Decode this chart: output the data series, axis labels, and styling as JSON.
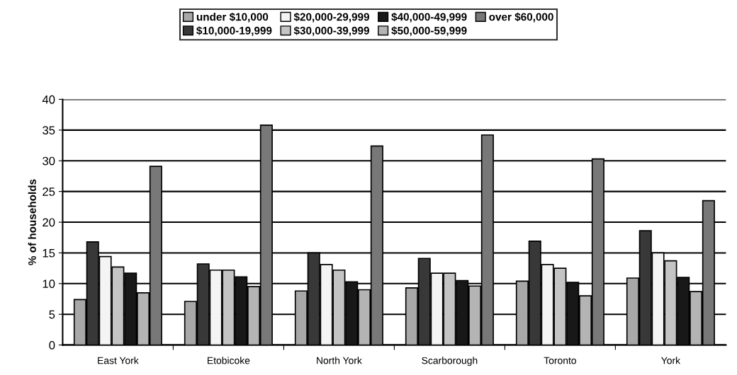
{
  "chart_data": {
    "type": "bar",
    "ylabel": "% of households",
    "categories": [
      "East York",
      "Etobicoke",
      "North York",
      "Scarborough",
      "Toronto",
      "York"
    ],
    "series": [
      {
        "name": "under $10,000",
        "color": "#a8a8a8",
        "values": [
          7.4,
          7.1,
          8.8,
          9.3,
          10.4,
          10.9
        ]
      },
      {
        "name": "$10,000-19,999",
        "color": "#383838",
        "values": [
          16.8,
          13.2,
          15.0,
          14.1,
          16.9,
          18.6
        ]
      },
      {
        "name": "$20,000-29,999",
        "color": "#f4f4f4",
        "values": [
          14.4,
          12.2,
          13.1,
          11.7,
          13.1,
          15.0
        ]
      },
      {
        "name": "$30,000-39,999",
        "color": "#c4c4c4",
        "values": [
          12.7,
          12.2,
          12.2,
          11.7,
          12.5,
          13.7
        ]
      },
      {
        "name": "$40,000-49,999",
        "color": "#181818",
        "values": [
          11.7,
          11.1,
          10.3,
          10.5,
          10.2,
          11.0
        ]
      },
      {
        "name": "$50,000-59,999",
        "color": "#b4b4b4",
        "values": [
          8.5,
          9.5,
          9.0,
          9.6,
          8.0,
          8.7
        ]
      },
      {
        "name": "over $60,000",
        "color": "#787878",
        "values": [
          29.1,
          35.8,
          32.4,
          34.2,
          30.3,
          23.5
        ]
      }
    ],
    "ylim": [
      0,
      40
    ],
    "yticks": [
      0,
      5,
      10,
      15,
      20,
      25,
      30,
      35,
      40
    ],
    "grid": "y",
    "legend": "top"
  }
}
